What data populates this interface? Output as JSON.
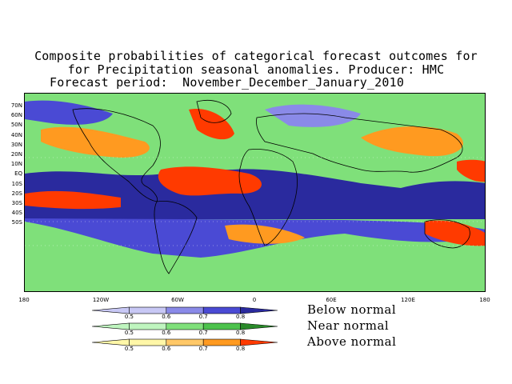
{
  "title": {
    "line1": "Composite probabilities of categorical forecast outcomes for",
    "line2": "for Precipitation seasonal anomalies. Producer: HMC",
    "line3": "Forecast period:  November_December_January_2010"
  },
  "map": {
    "lat_labels": [
      "70N",
      "60N",
      "50N",
      "40N",
      "30N",
      "20N",
      "10N",
      "EQ",
      "10S",
      "20S",
      "30S",
      "40S",
      "50S"
    ],
    "lon_labels": [
      "180",
      "120W",
      "60W",
      "0",
      "60E",
      "120E",
      "180"
    ],
    "colors": {
      "ocean_base": "#7fe07a",
      "below": [
        "#c8c8f5",
        "#8a8ae8",
        "#4a4ad4",
        "#2a2a9e"
      ],
      "near": [
        "#bff5bf",
        "#7fe07a",
        "#4cc24c",
        "#2a8a2a"
      ],
      "above": [
        "#fff7a8",
        "#ffc868",
        "#ff9a20",
        "#ff3a00"
      ]
    }
  },
  "legend": {
    "tick_values": [
      "0.5",
      "0.6",
      "0.7",
      "0.8"
    ],
    "categories": [
      {
        "name": "Below normal",
        "colors": [
          "#c8c8f5",
          "#8a8ae8",
          "#4a4ad4",
          "#2a2a9e"
        ]
      },
      {
        "name": "Near normal",
        "colors": [
          "#bff5bf",
          "#7fe07a",
          "#4cc24c",
          "#2a8a2a"
        ]
      },
      {
        "name": "Above normal",
        "colors": [
          "#fff7a8",
          "#ffc868",
          "#ff9a20",
          "#ff3a00"
        ]
      }
    ]
  }
}
